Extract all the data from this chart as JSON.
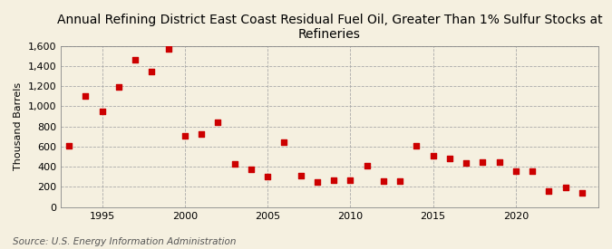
{
  "title": "Annual Refining District East Coast Residual Fuel Oil, Greater Than 1% Sulfur Stocks at\nRefineries",
  "ylabel": "Thousand Barrels",
  "source": "Source: U.S. Energy Information Administration",
  "background_color": "#f5f0e0",
  "marker_color": "#cc0000",
  "years": [
    1993,
    1994,
    1995,
    1996,
    1997,
    1998,
    1999,
    2000,
    2001,
    2002,
    2003,
    2004,
    2005,
    2006,
    2007,
    2008,
    2009,
    2010,
    2011,
    2012,
    2013,
    2014,
    2015,
    2016,
    2017,
    2018,
    2019,
    2020,
    2021,
    2022,
    2023,
    2024
  ],
  "values": [
    610,
    1100,
    950,
    1190,
    1460,
    1340,
    1570,
    710,
    720,
    840,
    430,
    370,
    300,
    640,
    310,
    250,
    270,
    270,
    410,
    260,
    260,
    610,
    510,
    480,
    440,
    450,
    450,
    360,
    360,
    160,
    190,
    140
  ],
  "ylim": [
    0,
    1600
  ],
  "yticks": [
    0,
    200,
    400,
    600,
    800,
    1000,
    1200,
    1400,
    1600
  ],
  "ytick_labels": [
    "0",
    "200",
    "400",
    "600",
    "800",
    "1,000",
    "1,200",
    "1,400",
    "1,600"
  ],
  "xlim": [
    1992.5,
    2025
  ],
  "xticks": [
    1995,
    2000,
    2005,
    2010,
    2015,
    2020
  ],
  "grid_color": "#aaaaaa",
  "title_fontsize": 10,
  "axis_fontsize": 8,
  "source_fontsize": 7.5
}
